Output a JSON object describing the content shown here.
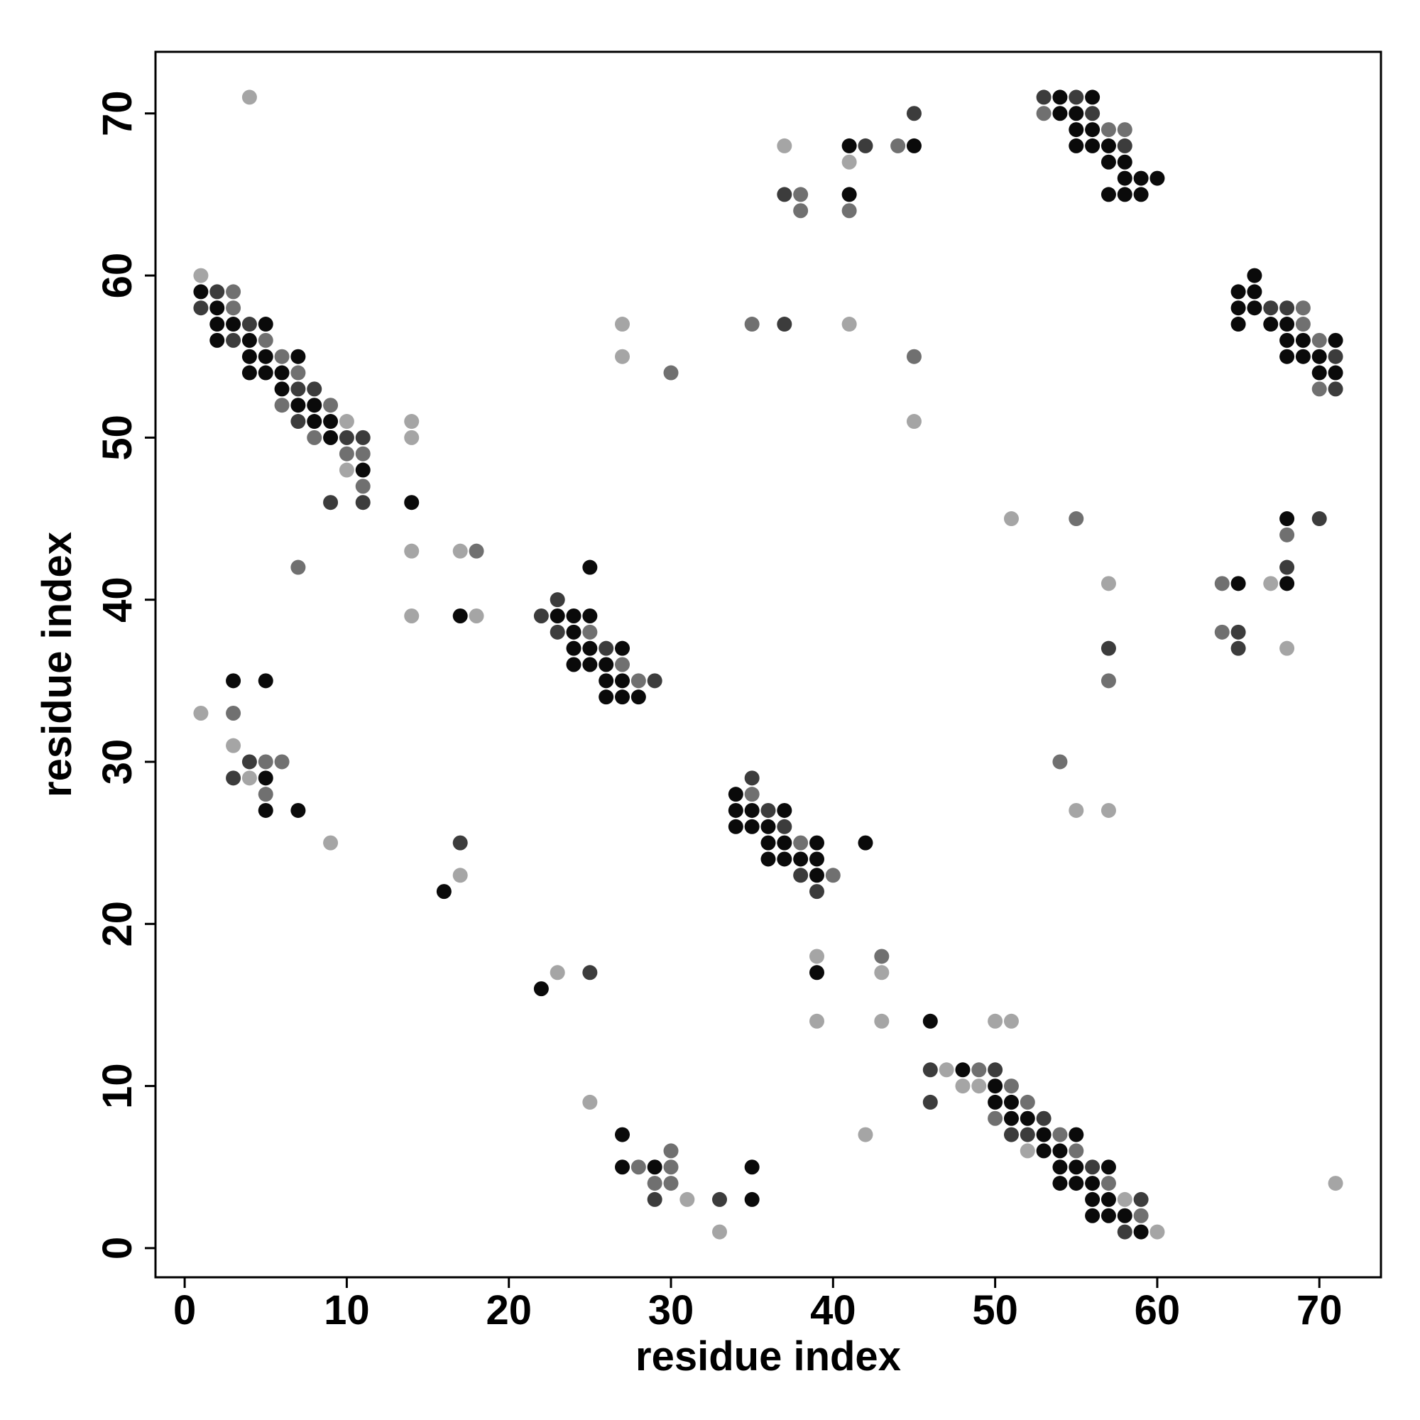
{
  "chart_data": {
    "type": "scatter",
    "x_label": "residue index",
    "y_label": "residue index",
    "xlim": [
      -1.8,
      73.8
    ],
    "ylim": [
      -1.8,
      73.8
    ],
    "xticks": [
      0,
      10,
      20,
      30,
      40,
      50,
      60,
      70
    ],
    "yticks": [
      0,
      10,
      20,
      30,
      40,
      50,
      60,
      70
    ],
    "grid": false,
    "series": [
      {
        "color": "#0a0a0a",
        "x": [
          54,
          56,
          54,
          55,
          55,
          56,
          41,
          45,
          55,
          56,
          57,
          57,
          58,
          58,
          59,
          60,
          41,
          57,
          58,
          59,
          66,
          1,
          65,
          66,
          2,
          65,
          66,
          2,
          3,
          5,
          65,
          67,
          68,
          2,
          4,
          68,
          69,
          71,
          4,
          5,
          7,
          68,
          69,
          70,
          4,
          5,
          6,
          70,
          71,
          6,
          7,
          8,
          8,
          9,
          9,
          11,
          14,
          68,
          25,
          65,
          68,
          17,
          23,
          24,
          25,
          24,
          24,
          25,
          27,
          24,
          25,
          26,
          3,
          5,
          26,
          27,
          26,
          27,
          28,
          5,
          34,
          5,
          7,
          34,
          35,
          37,
          34,
          35,
          36,
          36,
          37,
          39,
          42,
          36,
          37,
          38,
          39,
          39,
          16,
          39,
          22,
          46,
          48,
          50,
          50,
          51,
          51,
          52,
          27,
          53,
          55,
          53,
          54,
          27,
          29,
          35,
          54,
          55,
          57,
          54,
          55,
          56,
          35,
          56,
          57,
          56,
          57,
          58,
          59
        ],
        "values": [
          71,
          71,
          70,
          70,
          69,
          69,
          68,
          68,
          68,
          68,
          68,
          67,
          67,
          66,
          66,
          66,
          65,
          65,
          65,
          65,
          60,
          59,
          59,
          59,
          58,
          58,
          58,
          57,
          57,
          57,
          57,
          57,
          57,
          56,
          56,
          56,
          56,
          56,
          55,
          55,
          55,
          55,
          55,
          55,
          54,
          54,
          54,
          54,
          54,
          53,
          52,
          52,
          51,
          51,
          50,
          48,
          46,
          45,
          42,
          41,
          41,
          39,
          39,
          39,
          39,
          38,
          37,
          37,
          37,
          36,
          36,
          36,
          35,
          35,
          35,
          35,
          34,
          34,
          34,
          29,
          28,
          27,
          27,
          27,
          27,
          27,
          26,
          26,
          26,
          25,
          25,
          25,
          25,
          24,
          24,
          24,
          24,
          23,
          22,
          17,
          16,
          14,
          11,
          10,
          9,
          9,
          8,
          8,
          7,
          7,
          7,
          6,
          6,
          5,
          5,
          5,
          5,
          5,
          5,
          4,
          4,
          4,
          3,
          3,
          3,
          2,
          2,
          2,
          1
        ]
      },
      {
        "color": "#3c3c3c",
        "x": [
          53,
          55,
          45,
          56,
          42,
          58,
          37,
          2,
          1,
          67,
          68,
          4,
          37,
          3,
          71,
          7,
          8,
          71,
          7,
          10,
          11,
          9,
          11,
          70,
          68,
          23,
          22,
          23,
          65,
          26,
          57,
          65,
          29,
          4,
          3,
          35,
          36,
          37,
          17,
          38,
          39,
          25,
          46,
          50,
          46,
          53,
          51,
          52,
          56,
          29,
          33,
          59,
          58
        ],
        "values": [
          71,
          71,
          70,
          70,
          68,
          68,
          65,
          59,
          58,
          58,
          58,
          57,
          57,
          56,
          55,
          53,
          53,
          53,
          51,
          50,
          50,
          46,
          46,
          45,
          42,
          40,
          39,
          38,
          38,
          37,
          37,
          37,
          35,
          30,
          29,
          29,
          27,
          26,
          25,
          23,
          22,
          17,
          11,
          11,
          9,
          8,
          7,
          7,
          5,
          3,
          3,
          3,
          1
        ]
      },
      {
        "color": "#707070",
        "x": [
          53,
          57,
          58,
          44,
          38,
          38,
          41,
          3,
          3,
          69,
          35,
          69,
          5,
          70,
          6,
          45,
          7,
          30,
          70,
          6,
          9,
          8,
          10,
          11,
          11,
          55,
          68,
          18,
          7,
          64,
          25,
          64,
          27,
          28,
          57,
          3,
          5,
          6,
          54,
          5,
          35,
          38,
          40,
          43,
          49,
          51,
          52,
          50,
          54,
          30,
          55,
          28,
          30,
          29,
          30,
          57,
          59
        ],
        "values": [
          70,
          69,
          69,
          68,
          65,
          64,
          64,
          59,
          58,
          58,
          57,
          57,
          56,
          56,
          55,
          55,
          54,
          54,
          53,
          52,
          52,
          50,
          49,
          49,
          47,
          45,
          44,
          43,
          42,
          41,
          38,
          38,
          36,
          35,
          35,
          33,
          30,
          30,
          30,
          28,
          28,
          25,
          23,
          18,
          11,
          10,
          9,
          8,
          7,
          6,
          6,
          5,
          5,
          4,
          4,
          4,
          2
        ]
      },
      {
        "color": "#a5a5a5",
        "x": [
          4,
          37,
          41,
          1,
          27,
          41,
          27,
          10,
          14,
          45,
          14,
          10,
          51,
          14,
          17,
          57,
          67,
          14,
          18,
          68,
          1,
          3,
          4,
          55,
          57,
          9,
          17,
          39,
          23,
          43,
          39,
          43,
          50,
          51,
          47,
          48,
          49,
          25,
          42,
          52,
          71,
          31,
          58,
          33,
          60
        ],
        "values": [
          71,
          68,
          67,
          60,
          57,
          57,
          55,
          51,
          51,
          51,
          50,
          48,
          45,
          43,
          43,
          41,
          41,
          39,
          39,
          37,
          33,
          31,
          29,
          27,
          27,
          25,
          23,
          18,
          17,
          17,
          14,
          14,
          14,
          14,
          11,
          10,
          10,
          9,
          7,
          6,
          4,
          3,
          3,
          1,
          1
        ]
      }
    ]
  }
}
